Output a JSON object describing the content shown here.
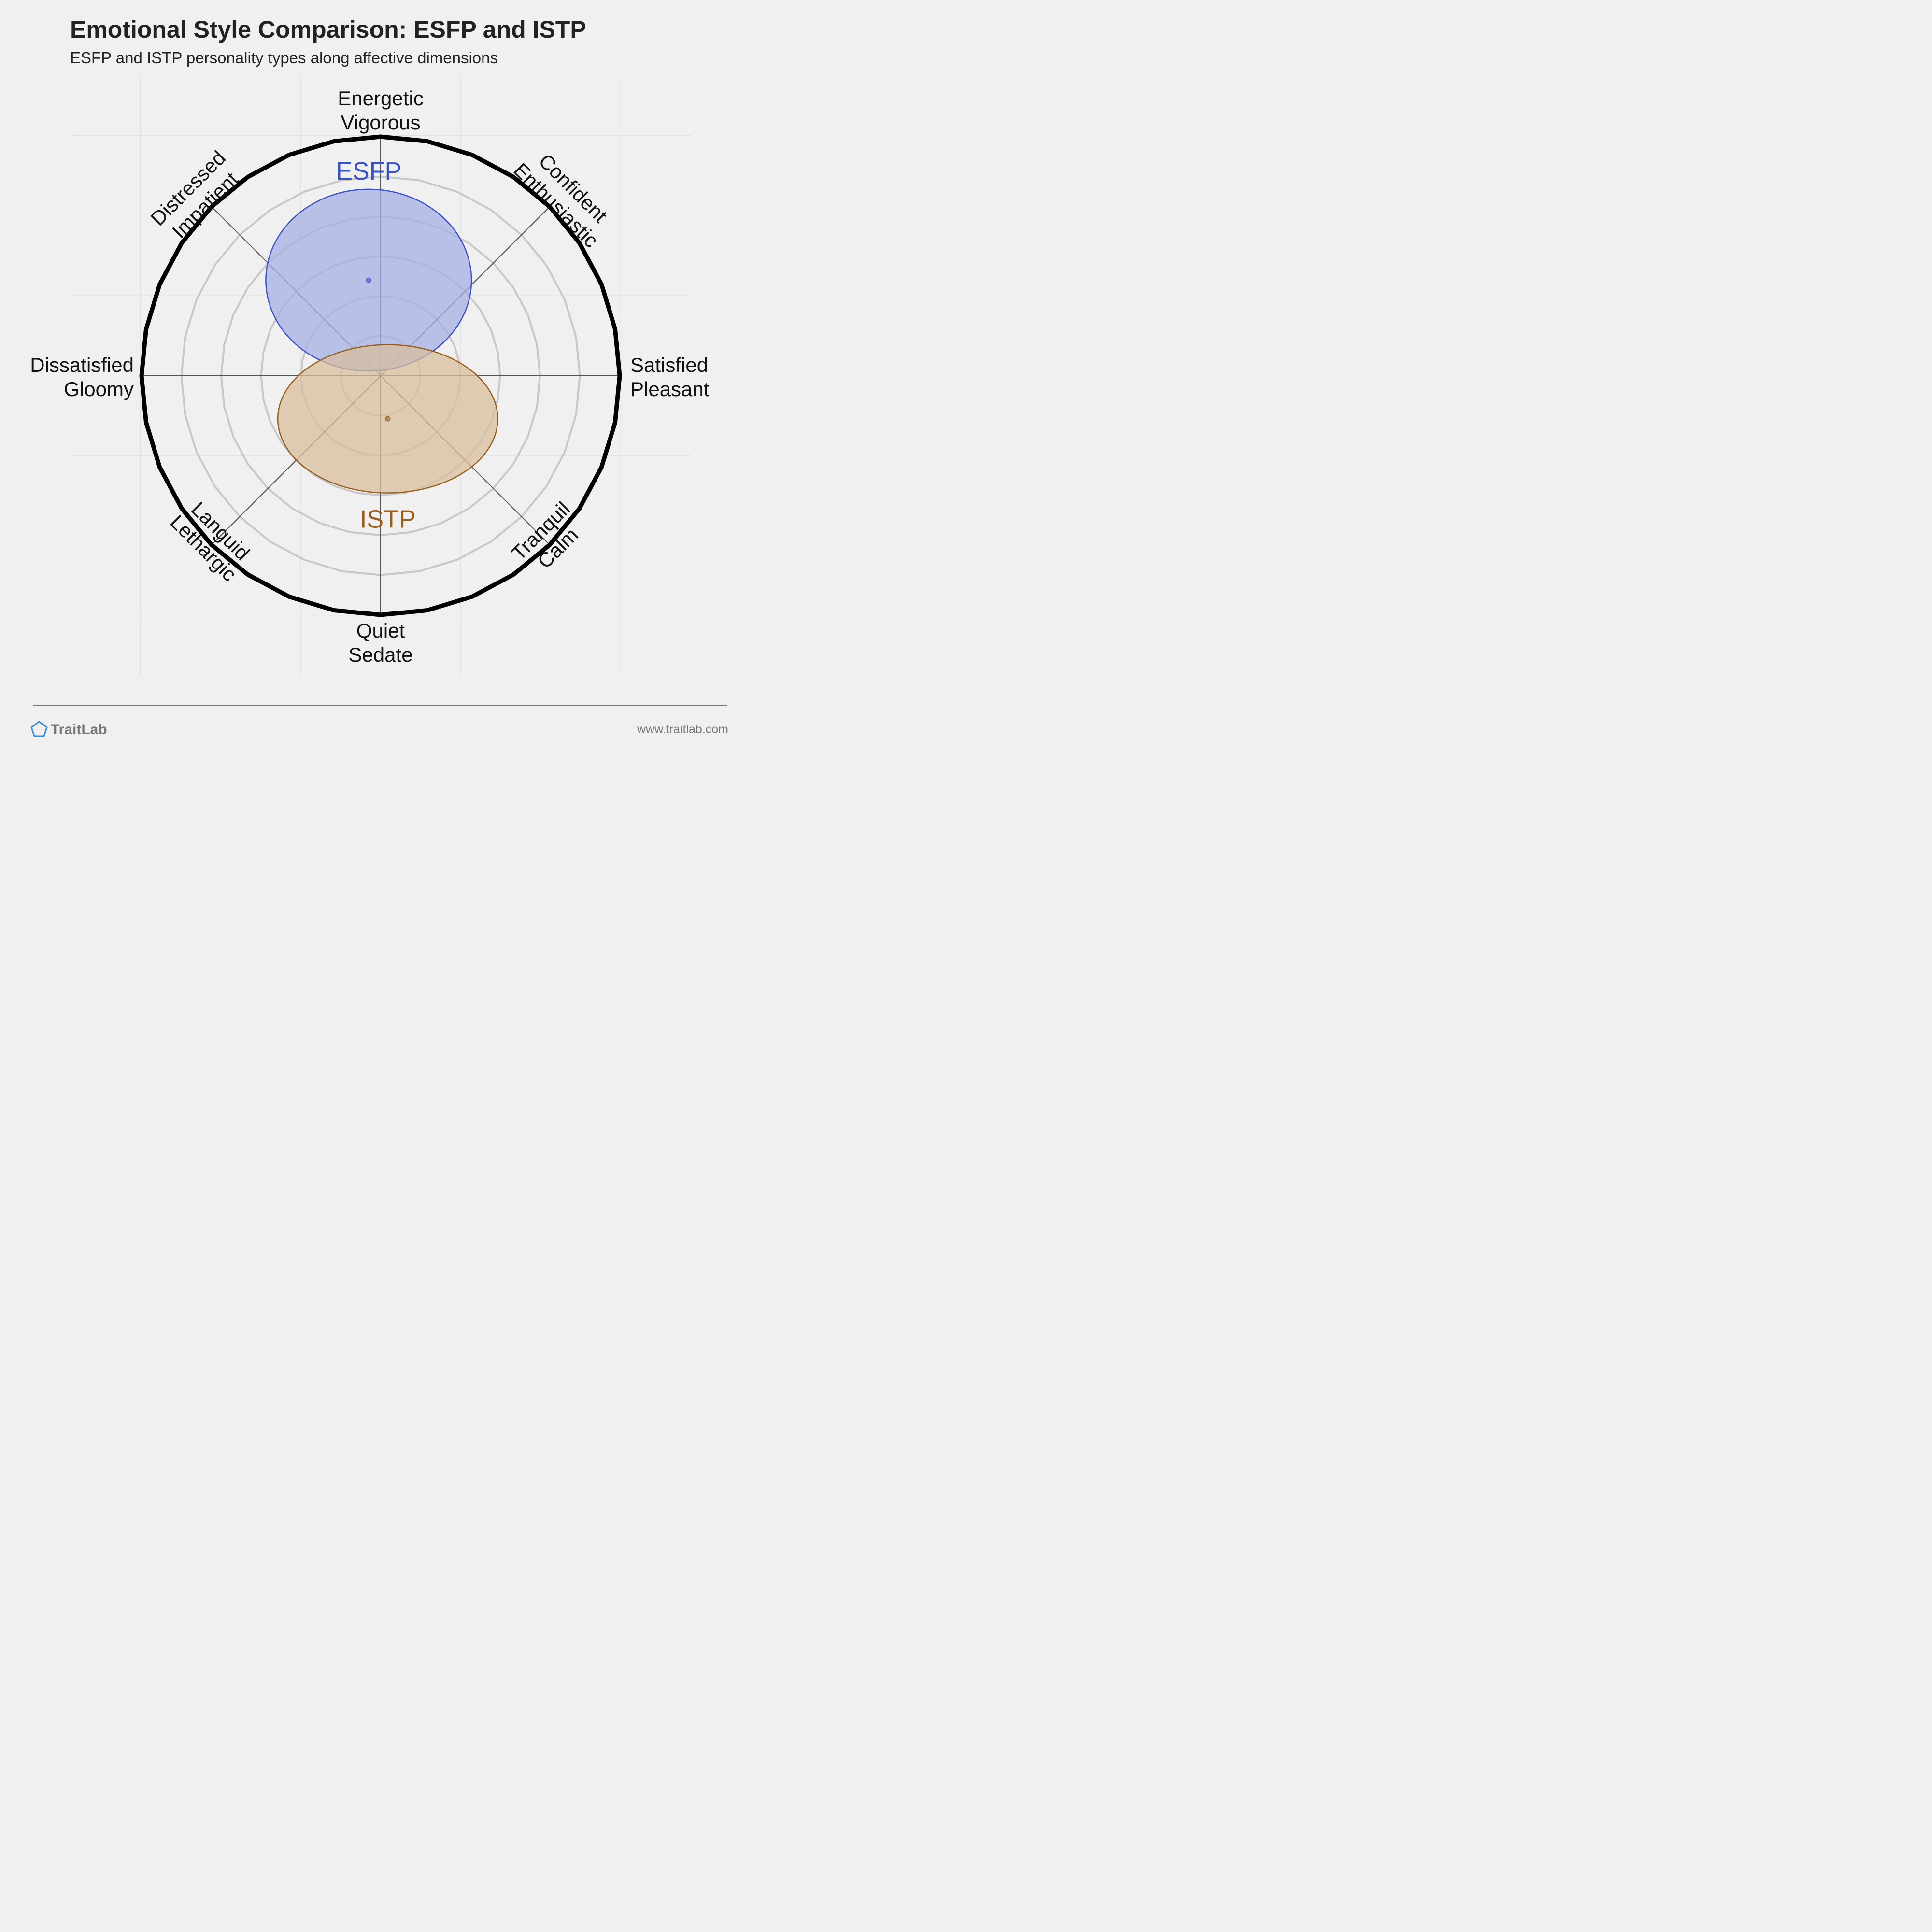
{
  "chart_data": {
    "type": "radar-ellipse",
    "title": "Emotional Style Comparison: ESFP and ISTP",
    "subtitle": "ESFP and ISTP personality types along affective dimensions",
    "grid": true,
    "range": [
      -1,
      1
    ],
    "axes": [
      {
        "id": "n",
        "lines": [
          "Energetic",
          "Vigorous"
        ]
      },
      {
        "id": "ne",
        "lines": [
          "Confident",
          "Enthusiastic"
        ]
      },
      {
        "id": "e",
        "lines": [
          "Satisfied",
          "Pleasant"
        ]
      },
      {
        "id": "se",
        "lines": [
          "Tranquil",
          "Calm"
        ]
      },
      {
        "id": "s",
        "lines": [
          "Quiet",
          "Sedate"
        ]
      },
      {
        "id": "sw",
        "lines": [
          "Languid",
          "Lethargic"
        ]
      },
      {
        "id": "w",
        "lines": [
          "Dissatisfied",
          "Gloomy"
        ]
      },
      {
        "id": "nw",
        "lines": [
          "Distressed",
          "Impatient"
        ]
      }
    ],
    "series": [
      {
        "name": "ESFP",
        "x": -0.05,
        "y": 0.4,
        "rx": 0.43,
        "ry": 0.38,
        "color": "#3a52c8",
        "fill": "#a5b0e6",
        "label_pos": "top"
      },
      {
        "name": "ISTP",
        "x": 0.03,
        "y": -0.18,
        "rx": 0.46,
        "ry": 0.31,
        "color": "#9a5e1c",
        "fill": "#d8bf9d",
        "label_pos": "bottom"
      }
    ]
  },
  "footer": {
    "brand": "TraitLab",
    "url": "www.traitlab.com"
  }
}
